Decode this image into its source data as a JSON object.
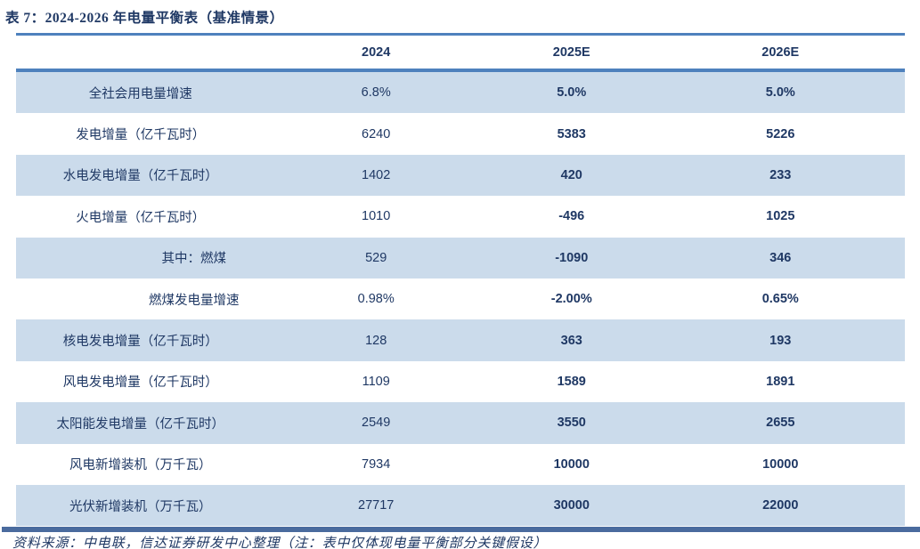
{
  "title": "表 7：2024-2026 年电量平衡表（基准情景）",
  "table": {
    "columns": [
      "",
      "2024",
      "2025E",
      "2026E"
    ],
    "rows": [
      {
        "label": "全社会用电量增速",
        "values": [
          "6.8%",
          "5.0%",
          "5.0%"
        ]
      },
      {
        "label": "发电增量（亿千瓦时）",
        "values": [
          "6240",
          "5383",
          "5226"
        ]
      },
      {
        "label": "水电发电增量（亿千瓦时）",
        "values": [
          "1402",
          "420",
          "233"
        ]
      },
      {
        "label": "火电增量（亿千瓦时）",
        "values": [
          "1010",
          "-496",
          "1025"
        ]
      },
      {
        "label": "其中：燃煤",
        "values": [
          "529",
          "-1090",
          "346"
        ],
        "sub": true
      },
      {
        "label": "燃煤发电量增速",
        "values": [
          "0.98%",
          "-2.00%",
          "0.65%"
        ],
        "sub": true
      },
      {
        "label": "核电发电增量（亿千瓦时）",
        "values": [
          "128",
          "363",
          "193"
        ]
      },
      {
        "label": "风电发电增量（亿千瓦时）",
        "values": [
          "1109",
          "1589",
          "1891"
        ]
      },
      {
        "label": "太阳能发电增量（亿千瓦时）",
        "values": [
          "2549",
          "3550",
          "2655"
        ]
      },
      {
        "label": "风电新增装机（万千瓦）",
        "values": [
          "7934",
          "10000",
          "10000"
        ]
      },
      {
        "label": "光伏新增装机（万千瓦）",
        "values": [
          "27717",
          "30000",
          "22000"
        ]
      }
    ]
  },
  "footer": "资料来源：中电联，信达证券研发中心整理（注：表中仅体现电量平衡部分关键假设）",
  "colors": {
    "text_navy": "#1f3864",
    "accent_line": "#4e81bd",
    "bottom_bar": "#4a6b9e",
    "row_stripe": "#cbdbeb"
  }
}
